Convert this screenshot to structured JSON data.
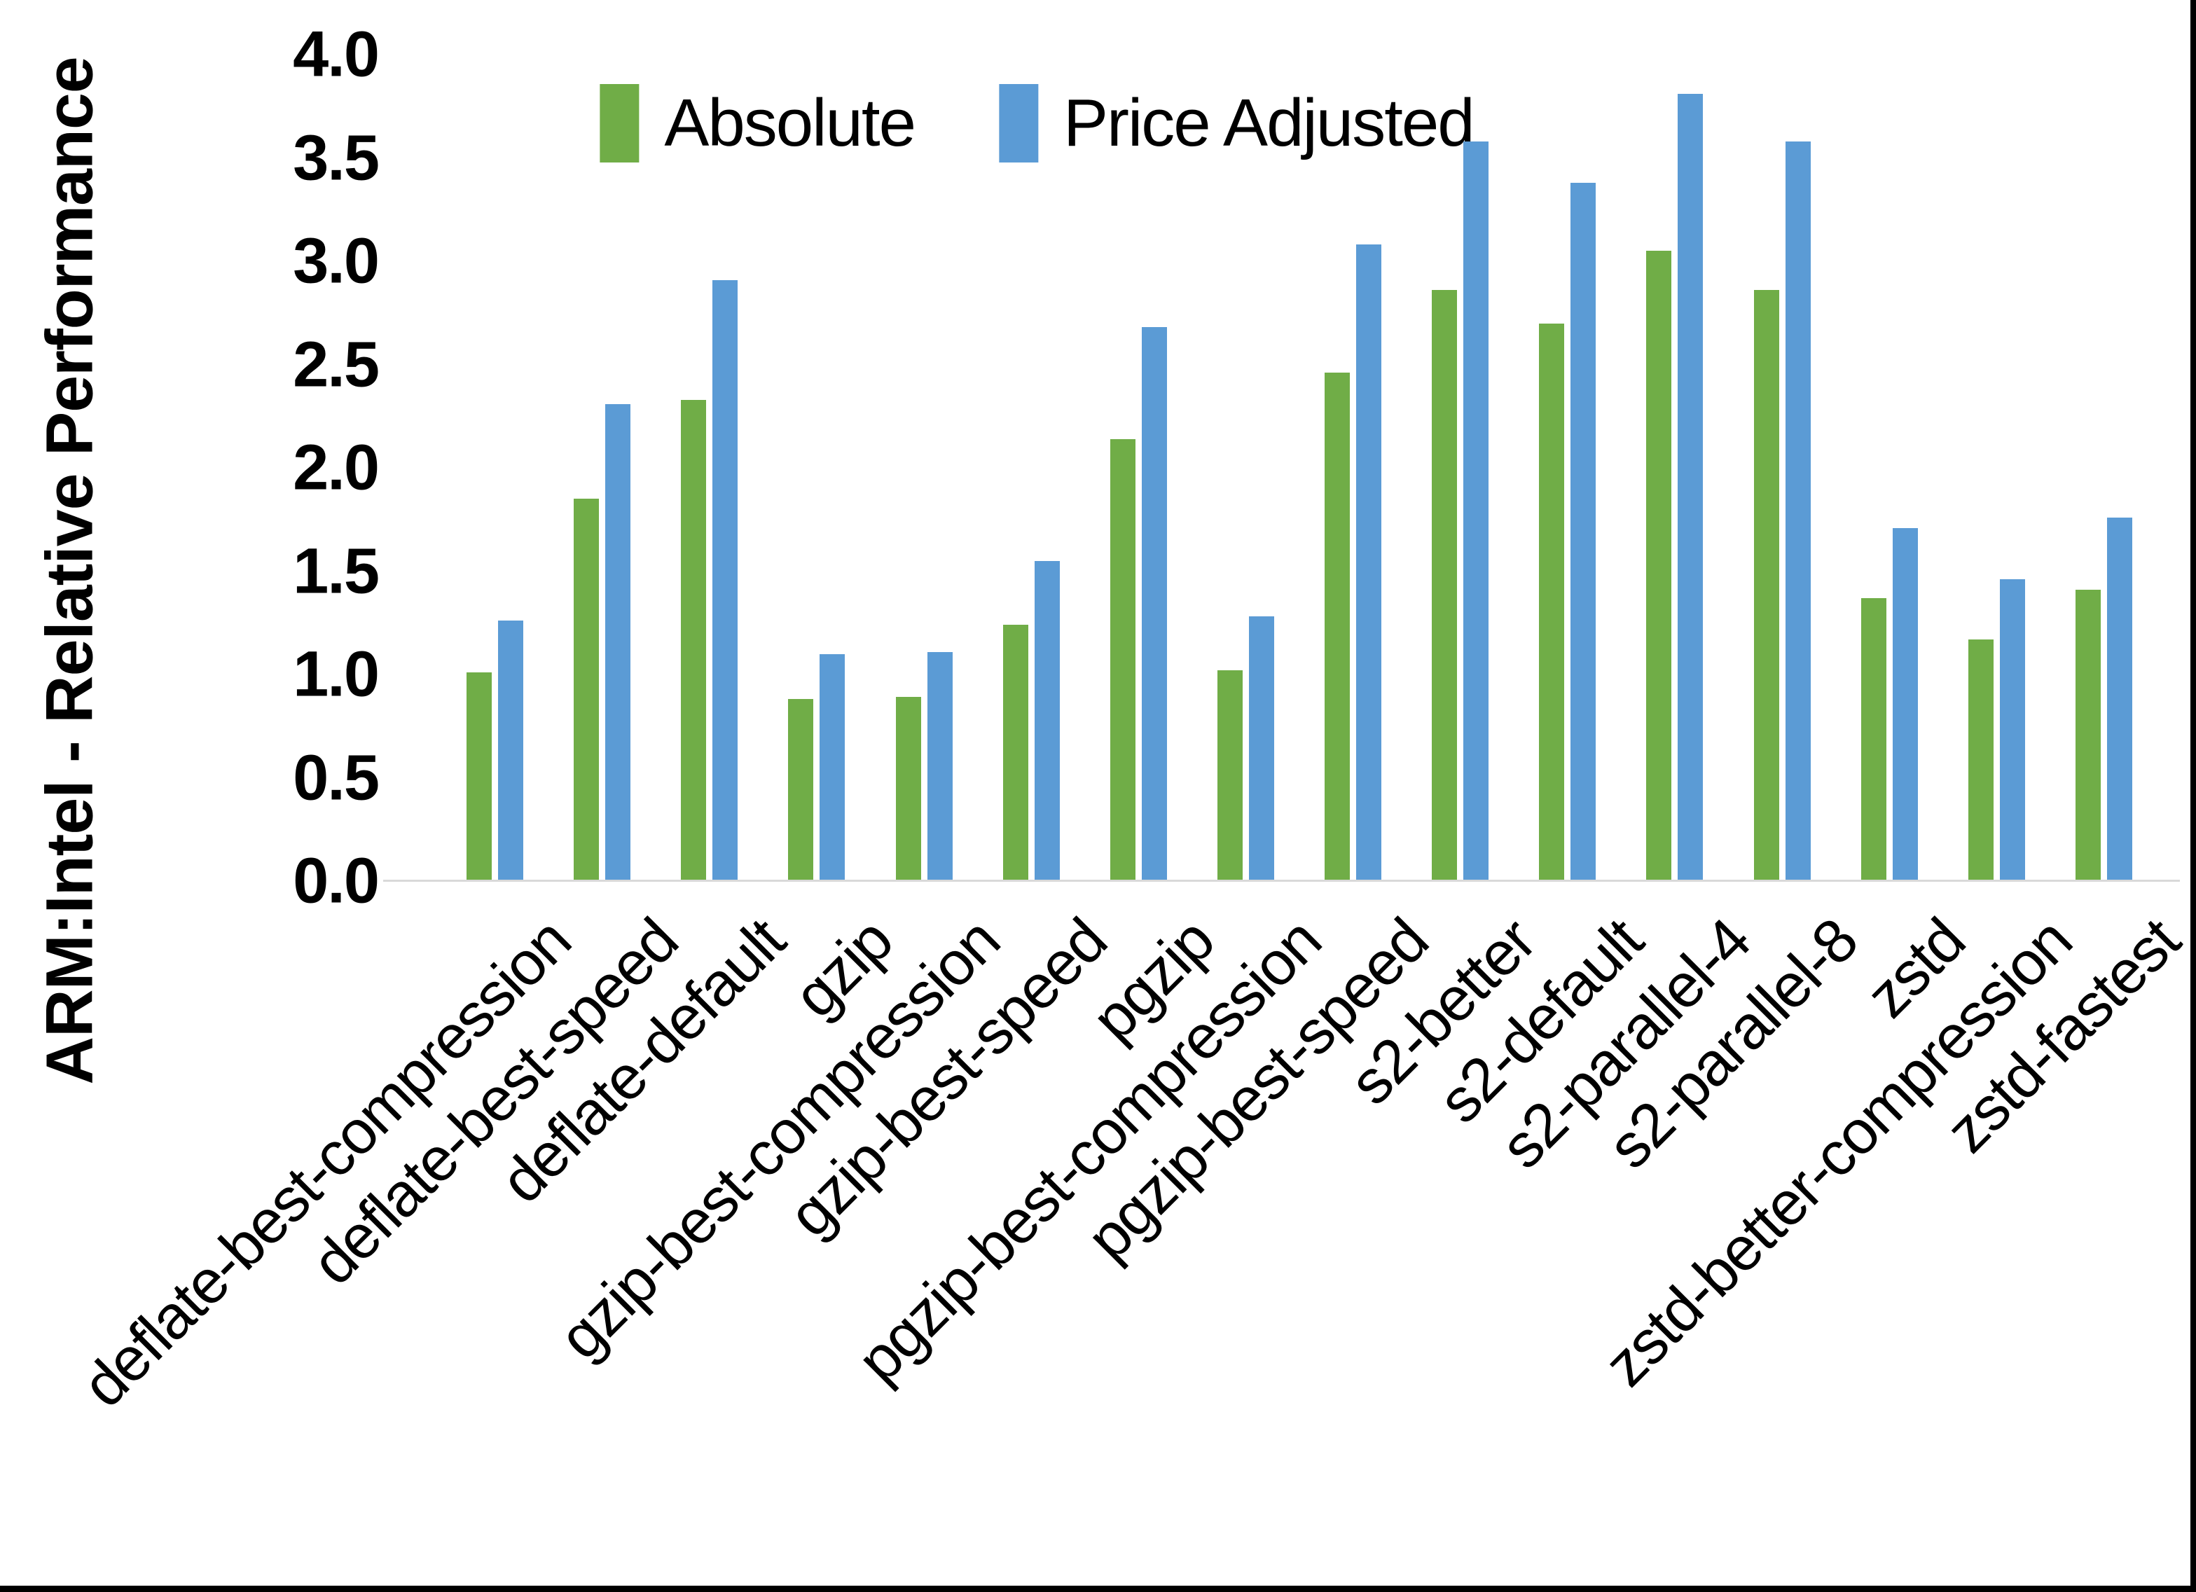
{
  "chart_data": {
    "type": "bar",
    "title": "",
    "ylabel": "ARM:Intel - Relative Performance",
    "xlabel": "",
    "ylim": [
      0,
      4
    ],
    "ytick_step": 0.5,
    "ytick_decimals": 1,
    "grid": false,
    "legend_position": "top-center",
    "categories": [
      "deflate-best-compression",
      "deflate-best-speed",
      "deflate-default",
      "gzip",
      "gzip-best-compression",
      "gzip-best-speed",
      "pgzip",
      "pgzip-best-compression",
      "pgzip-best-speed",
      "s2-better",
      "s2-default",
      "s2-parallel-4",
      "s2-parallel-8",
      "zstd",
      "zstd-better-compression",
      "zstd-fastest"
    ],
    "series": [
      {
        "name": "Absolute",
        "color": "#70AD47",
        "values": [
          1.01,
          1.85,
          2.33,
          0.88,
          0.89,
          1.24,
          2.14,
          1.02,
          2.46,
          2.86,
          2.7,
          3.05,
          2.86,
          1.37,
          1.17,
          1.41
        ]
      },
      {
        "name": "Price Adjusted",
        "color": "#5B9BD5",
        "values": [
          1.26,
          2.31,
          2.91,
          1.1,
          1.11,
          1.55,
          2.68,
          1.28,
          3.08,
          3.58,
          3.38,
          3.81,
          3.58,
          1.71,
          1.46,
          1.76
        ]
      }
    ],
    "colors": {
      "axis_line": "#D9D9D9",
      "text": "#000000",
      "background": "#FFFFFF",
      "frame": "#000000"
    }
  }
}
